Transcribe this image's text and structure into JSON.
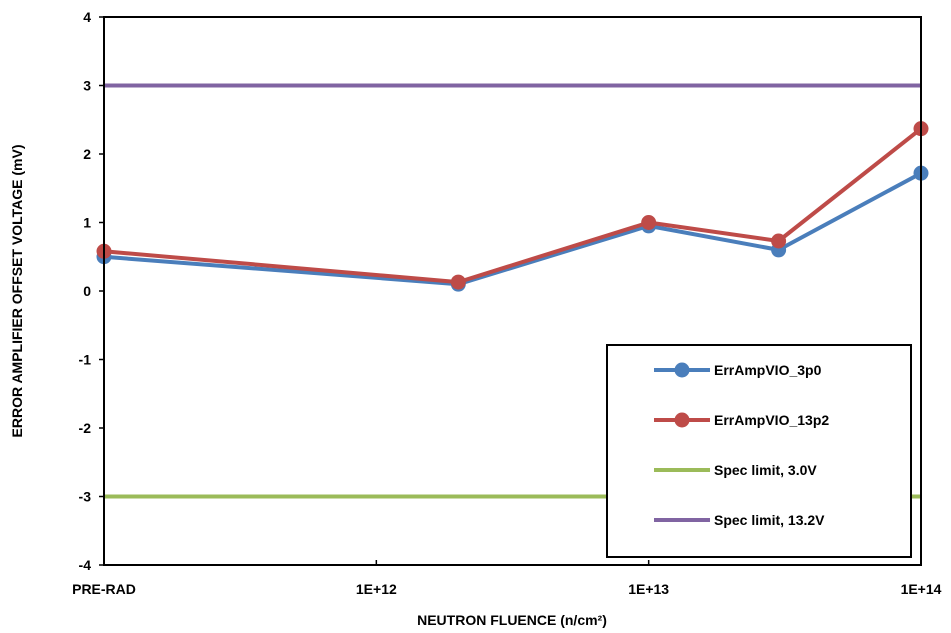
{
  "chart_data": {
    "type": "line",
    "xlabel": "NEUTRON FLUENCE (n/cm²)",
    "ylabel": "ERROR AMPLIFIER OFFSET VOLTAGE (mV)",
    "x_tick_labels": [
      "PRE-RAD",
      "1E+12",
      "1E+13",
      "1E+14"
    ],
    "x_ticks_log10": [
      11,
      12,
      13,
      14
    ],
    "xlim_log10": [
      11,
      14
    ],
    "y_ticks": [
      -4,
      -3,
      -2,
      -1,
      0,
      1,
      2,
      3,
      4
    ],
    "ylim": [
      -4,
      4
    ],
    "grid": false,
    "legend_position": "bottom-right",
    "series": [
      {
        "name": "ErrAmpVIO_3p0",
        "color": "#4a7ebb",
        "marker": "circle",
        "points": [
          {
            "x": "PRE-RAD",
            "y": 0.5
          },
          {
            "x": 2000000000000.0,
            "y": 0.1
          },
          {
            "x": 10000000000000.0,
            "y": 0.95
          },
          {
            "x": 30000000000000.0,
            "y": 0.6
          },
          {
            "x": 100000000000000.0,
            "y": 1.72
          }
        ]
      },
      {
        "name": "ErrAmpVIO_13p2",
        "color": "#be4b48",
        "marker": "circle",
        "points": [
          {
            "x": "PRE-RAD",
            "y": 0.58
          },
          {
            "x": 2000000000000.0,
            "y": 0.13
          },
          {
            "x": 10000000000000.0,
            "y": 1.0
          },
          {
            "x": 30000000000000.0,
            "y": 0.73
          },
          {
            "x": 100000000000000.0,
            "y": 2.37
          }
        ]
      },
      {
        "name": "Spec limit, 3.0V",
        "color": "#9bbb59",
        "marker": "none",
        "constant": -3
      },
      {
        "name": "Spec limit, 13.2V",
        "color": "#8064a2",
        "marker": "none",
        "constant": 3
      }
    ]
  }
}
